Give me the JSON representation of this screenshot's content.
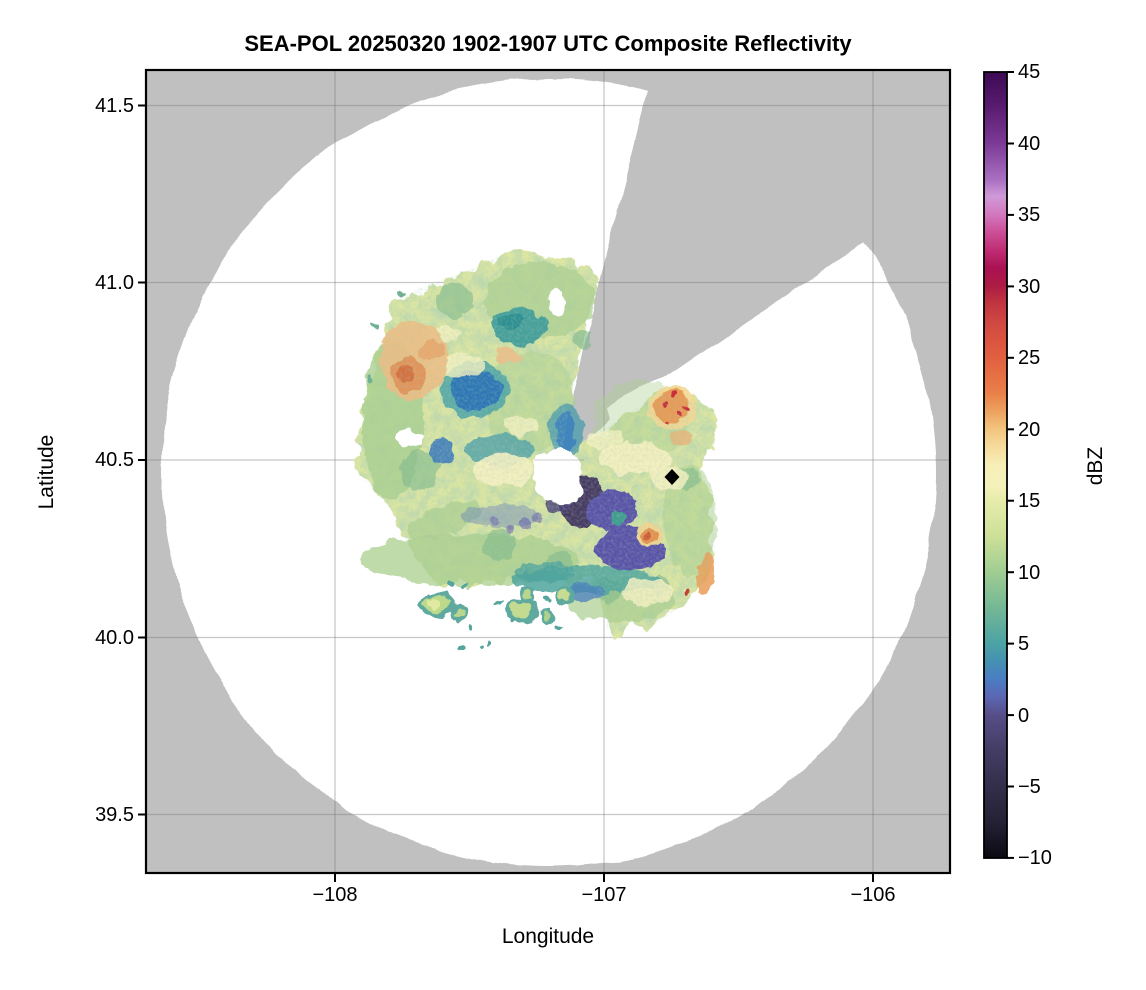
{
  "title": "SEA-POL 20250320 1902-1907 UTC Composite Reflectivity",
  "axes": {
    "x": {
      "label": "Longitude",
      "ticks": [
        {
          "label": "−108"
        },
        {
          "label": "−107"
        },
        {
          "label": "−106"
        }
      ]
    },
    "y": {
      "label": "Latitude",
      "ticks": [
        {
          "label": "41.5"
        },
        {
          "label": "41.0"
        },
        {
          "label": "40.5"
        },
        {
          "label": "40.0"
        },
        {
          "label": "39.5"
        }
      ]
    }
  },
  "colorbar": {
    "label": "dBZ",
    "max": 45,
    "min": -10,
    "ticks": [
      {
        "label": "45"
      },
      {
        "label": "40"
      },
      {
        "label": "35"
      },
      {
        "label": "30"
      },
      {
        "label": "25"
      },
      {
        "label": "20"
      },
      {
        "label": "15"
      },
      {
        "label": "10"
      },
      {
        "label": "5"
      },
      {
        "label": "0"
      },
      {
        "label": "−5"
      },
      {
        "label": "−10"
      }
    ],
    "gradient": [
      {
        "v": 45,
        "c": "#3c0a54"
      },
      {
        "v": 42.5,
        "c": "#5a1c70"
      },
      {
        "v": 40,
        "c": "#7c3a96"
      },
      {
        "v": 37.5,
        "c": "#a86fc0"
      },
      {
        "v": 36.3,
        "c": "#cf9ad8"
      },
      {
        "v": 35,
        "c": "#d277bd"
      },
      {
        "v": 33.8,
        "c": "#cb4f97"
      },
      {
        "v": 32.5,
        "c": "#c02c73"
      },
      {
        "v": 31.3,
        "c": "#aa1153"
      },
      {
        "v": 30,
        "c": "#ad1c44"
      },
      {
        "v": 28.8,
        "c": "#c23540"
      },
      {
        "v": 27.5,
        "c": "#cf4842"
      },
      {
        "v": 26.3,
        "c": "#da5340"
      },
      {
        "v": 25,
        "c": "#e16040"
      },
      {
        "v": 23.8,
        "c": "#e66f44"
      },
      {
        "v": 22.5,
        "c": "#e98049"
      },
      {
        "v": 21.3,
        "c": "#eda15e"
      },
      {
        "v": 20,
        "c": "#f2c57f"
      },
      {
        "v": 18.8,
        "c": "#f5db9b"
      },
      {
        "v": 17.5,
        "c": "#f7eeb8"
      },
      {
        "v": 16,
        "c": "#f4f1ba"
      },
      {
        "v": 15,
        "c": "#e6ecaa"
      },
      {
        "v": 12.5,
        "c": "#cde098"
      },
      {
        "v": 10,
        "c": "#9fcd92"
      },
      {
        "v": 7.5,
        "c": "#74b795"
      },
      {
        "v": 5,
        "c": "#4ca3a4"
      },
      {
        "v": 3.8,
        "c": "#4591b1"
      },
      {
        "v": 2.5,
        "c": "#4a7dc2"
      },
      {
        "v": 1.3,
        "c": "#5c67b4"
      },
      {
        "v": 0,
        "c": "#574e88"
      },
      {
        "v": -2.5,
        "c": "#433d64"
      },
      {
        "v": -5,
        "c": "#332e4a"
      },
      {
        "v": -7.5,
        "c": "#242135"
      },
      {
        "v": -10,
        "c": "#0b0a12"
      }
    ]
  },
  "colors": {
    "no_coverage_gray": "#c0c0c0",
    "coverage_white": "#ffffff",
    "gridline": "#bdbdbd",
    "marker": "#000000"
  },
  "chart_data": {
    "type": "heatmap",
    "subtype": "radar_composite_reflectivity",
    "title": "SEA-POL 20250320 1902-1907 UTC Composite Reflectivity",
    "xlabel": "Longitude",
    "ylabel": "Latitude",
    "xlim": [
      -108.7,
      -105.71
    ],
    "ylim": [
      39.33,
      41.61
    ],
    "x_ticks": [
      -108,
      -107,
      -106
    ],
    "y_ticks": [
      39.5,
      40.0,
      40.5,
      41.0,
      41.5
    ],
    "grid": true,
    "colorbar": {
      "label": "dBZ",
      "min": -10,
      "max": 45,
      "tick_step": 5,
      "position": "right"
    },
    "radar_site": {
      "lon": -107.2,
      "lat": 40.46
    },
    "coverage_circle": {
      "center_lon": -107.2,
      "center_lat": 40.46,
      "radius_deg_lon": 1.44
    },
    "blocked_sector": {
      "azimuth_start_deg": 14,
      "azimuth_end_deg": 54,
      "note": "no-data wedge from radar toward NNE/NE"
    },
    "site_marker": {
      "lon": -106.75,
      "lat": 40.45,
      "symbol": "filled black diamond"
    },
    "echo_features": [
      {
        "name": "broad stratiform echo shield around radar",
        "lon": -107.45,
        "lat": 40.55,
        "dbz_range": [
          10,
          20
        ]
      },
      {
        "name": "embedded enhancement northwest",
        "lon": -107.83,
        "lat": 40.77,
        "dbz_range": [
          22,
          30
        ]
      },
      {
        "name": "low-reflectivity blue pocket",
        "lon": -107.47,
        "lat": 40.7,
        "dbz_range": [
          3,
          6
        ]
      },
      {
        "name": "teal pocket north of radar",
        "lon": -107.31,
        "lat": 40.89,
        "dbz_range": [
          7,
          10
        ]
      },
      {
        "name": "dark low-dBZ core southeast of radar",
        "lon": -106.97,
        "lat": 40.33,
        "dbz_range": [
          -5,
          3
        ]
      },
      {
        "name": "embedded maximum east of wedge",
        "lon": -106.83,
        "lat": 40.65,
        "dbz_range": [
          28,
          35
        ]
      },
      {
        "name": "embedded maximum in southeast lobe",
        "lon": -106.93,
        "lat": 40.34,
        "dbz_range": [
          22,
          28
        ]
      },
      {
        "name": "scattered weak cells south of main echo",
        "lon": -107.35,
        "lat": 40.05,
        "dbz_range": [
          8,
          16
        ]
      }
    ]
  }
}
